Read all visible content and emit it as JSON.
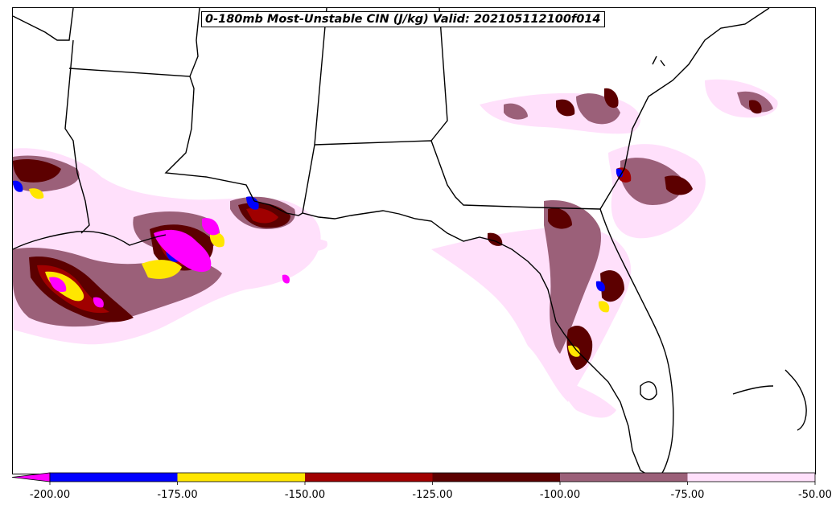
{
  "title": "0-180mb Most-Unstable CIN (J/kg) Valid: 202105112100f014",
  "colorbar": {
    "extend": "min",
    "extend_color": "#ff00ff",
    "bins": [
      {
        "min": -200,
        "max": -175,
        "color": "#0000ff"
      },
      {
        "min": -175,
        "max": -150,
        "color": "#ffe600"
      },
      {
        "min": -150,
        "max": -125,
        "color": "#a00000"
      },
      {
        "min": -125,
        "max": -100,
        "color": "#5c0000"
      },
      {
        "min": -100,
        "max": -75,
        "color": "#9b6079"
      },
      {
        "min": -75,
        "max": -50,
        "color": "#ffe0fb"
      }
    ],
    "tick_labels": [
      "-200.00",
      "-175.00",
      "-150.00",
      "-125.00",
      "-100.00",
      "-75.00",
      "-50.00"
    ]
  }
}
